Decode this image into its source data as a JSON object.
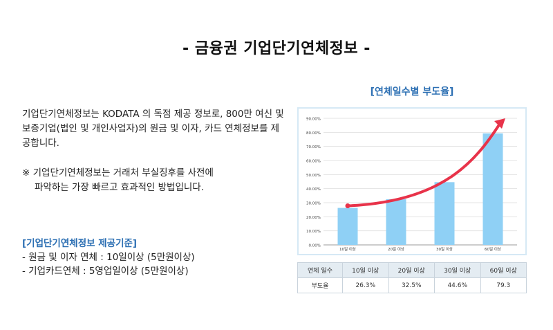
{
  "page": {
    "title": "- 금융권 기업단기연체정보 -"
  },
  "description": {
    "paragraph": "기업단기연체정보는 KODATA 의 독점 제공 정보로, 800만 여신 및 보증기업(법인 및 개인사업자)의 원금 및 이자, 카드 연체정보를 제공합니다.",
    "note_line1": "※ 기업단기연체정보는 거래처 부실징후를 사전에",
    "note_line2": "파악하는 가장 빠르고 효과적인 방법입니다."
  },
  "criteria": {
    "heading": "[기업단기연체정보 제공기준]",
    "items": [
      "- 원금 및 이자 연체 : 10일이상 (5만원이상)",
      "- 기업카드연체 : 5영업일이상 (5만원이상)"
    ]
  },
  "chart_data": {
    "type": "bar",
    "title": "[연체일수별 부도율]",
    "categories": [
      "10일 이상",
      "20일 이상",
      "30일 이상",
      "60일 이상"
    ],
    "values": [
      26.3,
      32.5,
      44.6,
      79.3
    ],
    "ylim": [
      0,
      90
    ],
    "yticks": [
      "0.00%",
      "10.00%",
      "20.00%",
      "30.00%",
      "40.00%",
      "50.00%",
      "60.00%",
      "70.00%",
      "80.00%",
      "90.00%"
    ],
    "grid": true,
    "bar_color": "#8fd0f5",
    "trend_arrow_color": "#e8334a"
  },
  "table": {
    "row_labels": [
      "연체 일수",
      "부도율"
    ],
    "header": [
      "10일 이상",
      "20일 이상",
      "30일 이상",
      "60일 이상"
    ],
    "values": [
      "26.3%",
      "32.5%",
      "44.6%",
      "79.3"
    ]
  }
}
